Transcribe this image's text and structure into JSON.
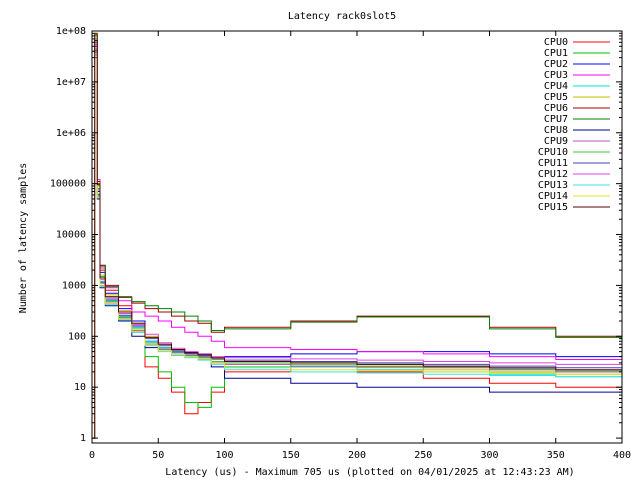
{
  "chart_data": {
    "type": "line",
    "title": "Latency rack0slot5",
    "xlabel": "Latency (us) - Maximum 705 us (plotted on 04/01/2025 at 12:43:23 AM)",
    "ylabel": "Number of latency samples",
    "xlim": [
      0,
      400
    ],
    "ylim": [
      0.8,
      100000000
    ],
    "yscale": "log",
    "grid": false,
    "legend_position": "top-right",
    "x_ticks": [
      0,
      50,
      100,
      150,
      200,
      250,
      300,
      350,
      400
    ],
    "x_tick_labels": [
      "0",
      "50",
      "100",
      "150",
      "200",
      "250",
      "300",
      "350",
      "400"
    ],
    "y_ticks": [
      1,
      10,
      100,
      1000,
      10000,
      100000,
      1000000,
      10000000,
      100000000
    ],
    "y_tick_labels": [
      "1",
      "10",
      "100",
      "1000",
      "10000",
      "100000",
      "1e+06",
      "1e+07",
      "1e+08"
    ],
    "x": [
      0,
      2,
      4,
      6,
      10,
      20,
      30,
      40,
      50,
      60,
      70,
      80,
      90,
      100,
      150,
      200,
      250,
      300,
      350,
      400
    ],
    "series": [
      {
        "name": "CPU0",
        "color": "#ff0000",
        "values": [
          1,
          80000000,
          100000,
          2000,
          800,
          400,
          150,
          25,
          15,
          8,
          3,
          5,
          8,
          20,
          25,
          20,
          15,
          12,
          10,
          8
        ]
      },
      {
        "name": "CPU1",
        "color": "#00c000",
        "values": [
          1,
          60000000,
          80000,
          1500,
          600,
          300,
          120,
          40,
          20,
          10,
          5,
          4,
          10,
          25,
          30,
          28,
          25,
          22,
          20,
          18
        ]
      },
      {
        "name": "CPU2",
        "color": "#0000ff",
        "values": [
          1,
          50000000,
          70000,
          1800,
          700,
          350,
          200,
          80,
          60,
          50,
          45,
          40,
          30,
          40,
          45,
          50,
          50,
          45,
          40,
          35
        ]
      },
      {
        "name": "CPU3",
        "color": "#ff00ff",
        "values": [
          1,
          70000000,
          120000,
          2200,
          900,
          500,
          300,
          250,
          200,
          150,
          120,
          100,
          80,
          60,
          55,
          50,
          45,
          40,
          35,
          30
        ]
      },
      {
        "name": "CPU4",
        "color": "#00e0e0",
        "values": [
          1,
          40000000,
          60000,
          1200,
          500,
          250,
          150,
          80,
          60,
          45,
          40,
          35,
          30,
          25,
          25,
          22,
          20,
          18,
          16,
          15
        ]
      },
      {
        "name": "CPU5",
        "color": "#c0c000",
        "values": [
          1,
          45000000,
          90000,
          1600,
          650,
          320,
          180,
          100,
          70,
          55,
          48,
          42,
          35,
          28,
          26,
          24,
          22,
          20,
          18,
          16
        ]
      },
      {
        "name": "CPU6",
        "color": "#a00000",
        "values": [
          1,
          90000000,
          110000,
          2500,
          1000,
          600,
          450,
          350,
          300,
          250,
          200,
          180,
          120,
          150,
          200,
          250,
          250,
          150,
          100,
          90
        ]
      },
      {
        "name": "CPU7",
        "color": "#008000",
        "values": [
          1,
          85000000,
          100000,
          2400,
          950,
          580,
          480,
          400,
          350,
          300,
          250,
          200,
          130,
          140,
          190,
          240,
          240,
          140,
          95,
          85
        ]
      },
      {
        "name": "CPU8",
        "color": "#000090",
        "values": [
          1,
          30000000,
          50000,
          900,
          400,
          200,
          100,
          60,
          55,
          50,
          45,
          40,
          25,
          15,
          12,
          10,
          10,
          8,
          8,
          7
        ]
      },
      {
        "name": "CPU9",
        "color": "#c050c0",
        "values": [
          1,
          35000000,
          55000,
          1000,
          450,
          230,
          130,
          70,
          55,
          48,
          42,
          38,
          30,
          28,
          26,
          25,
          24,
          22,
          20,
          18
        ]
      },
      {
        "name": "CPU10",
        "color": "#40c040",
        "values": [
          1,
          38000000,
          58000,
          1100,
          480,
          240,
          140,
          75,
          58,
          50,
          44,
          40,
          32,
          30,
          28,
          26,
          25,
          23,
          21,
          19
        ]
      },
      {
        "name": "CPU11",
        "color": "#4040c0",
        "values": [
          1,
          42000000,
          62000,
          1150,
          520,
          260,
          160,
          90,
          65,
          52,
          46,
          42,
          36,
          34,
          32,
          30,
          28,
          26,
          24,
          22
        ]
      },
      {
        "name": "CPU12",
        "color": "#e040e0",
        "values": [
          1,
          55000000,
          75000,
          1300,
          560,
          280,
          170,
          110,
          75,
          58,
          50,
          45,
          40,
          38,
          36,
          34,
          32,
          30,
          28,
          26
        ]
      },
      {
        "name": "CPU13",
        "color": "#40e0e0",
        "values": [
          1,
          33000000,
          52000,
          950,
          420,
          210,
          120,
          65,
          50,
          42,
          38,
          34,
          28,
          22,
          20,
          19,
          18,
          17,
          16,
          15
        ]
      },
      {
        "name": "CPU14",
        "color": "#e0e020",
        "values": [
          1,
          36000000,
          54000,
          980,
          440,
          220,
          125,
          68,
          52,
          44,
          40,
          36,
          30,
          24,
          22,
          21,
          20,
          19,
          18,
          17
        ]
      },
      {
        "name": "CPU15",
        "color": "#600000",
        "values": [
          1,
          65000000,
          95000,
          1400,
          600,
          300,
          180,
          95,
          70,
          55,
          48,
          44,
          38,
          32,
          30,
          28,
          26,
          24,
          22,
          20
        ]
      }
    ]
  }
}
